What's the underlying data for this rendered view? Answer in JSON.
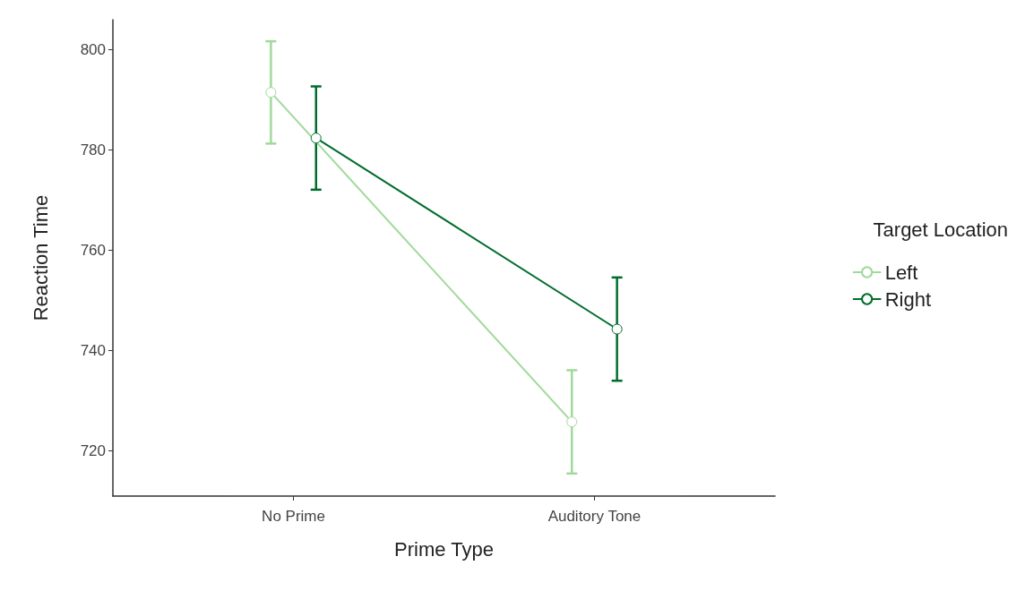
{
  "chart_data": {
    "type": "line",
    "xlabel": "Prime Type",
    "ylabel": "Reaction Time",
    "legend_title": "Target Location",
    "categories": [
      "No Prime",
      "Auditory Tone"
    ],
    "series": [
      {
        "name": "Left",
        "color": "#a1d99b",
        "values": [
          791.5,
          725.8
        ],
        "errors": [
          10.2,
          10.3
        ]
      },
      {
        "name": "Right",
        "color": "#006d2c",
        "values": [
          782.4,
          744.3
        ],
        "errors": [
          10.3,
          10.3
        ]
      }
    ],
    "ylim": [
      711,
      806
    ],
    "yticks": [
      720,
      740,
      760,
      780,
      800
    ],
    "grid": false,
    "legend": "right",
    "marker": "circle",
    "line_style": "solid"
  }
}
